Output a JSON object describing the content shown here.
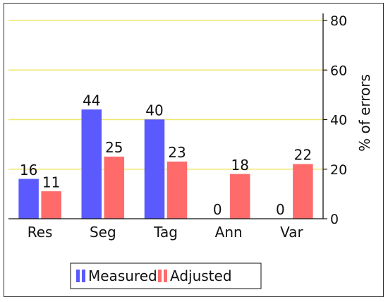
{
  "chart_data": {
    "type": "bar",
    "categories": [
      "Res",
      "Seg",
      "Tag",
      "Ann",
      "Var"
    ],
    "series": [
      {
        "name": "Measured",
        "values": [
          16,
          44,
          40,
          0,
          0
        ],
        "color": "#5a5aff"
      },
      {
        "name": "Adjusted",
        "values": [
          11,
          25,
          23,
          18,
          22
        ],
        "color": "#ff6b6b"
      }
    ],
    "data_labels": [
      [
        "16",
        "44",
        "40",
        "0",
        "0"
      ],
      [
        "11",
        "25",
        "23",
        "18",
        "22"
      ]
    ],
    "ylabel": "% of errors",
    "ylim": [
      0,
      80
    ],
    "yticks": [
      0,
      20,
      40,
      60,
      80
    ],
    "y_axis_side": "right",
    "grid": true,
    "grid_color": "#f0e66a",
    "legend_position": "bottom"
  }
}
